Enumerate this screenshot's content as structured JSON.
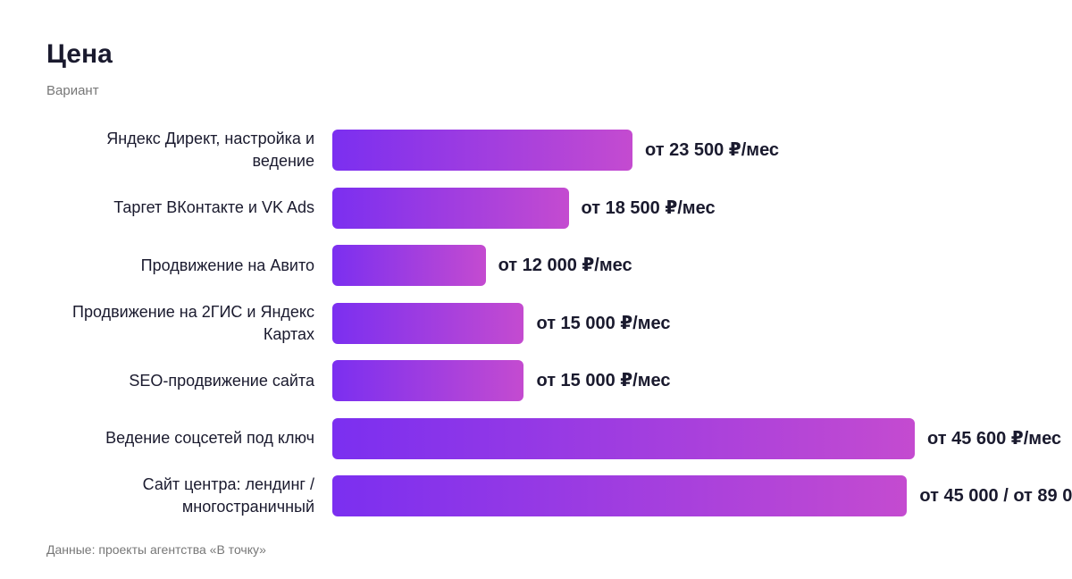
{
  "chart_data": {
    "type": "bar",
    "orientation": "horizontal",
    "title": "Цена",
    "subtitle": "Вариант",
    "categories": [
      "Яндекс Директ, настройка и ведение",
      "Таргет ВКонтакте и VK Ads",
      "Продвижение на Авито",
      "Продвижение на 2ГИС и Яндекс Картах",
      "SEO-продвижение сайта",
      "Ведение соцсетей под ключ",
      "Сайт центра: лендинг / многостраничный"
    ],
    "values": [
      23500,
      18500,
      12000,
      15000,
      15000,
      45600,
      45000
    ],
    "value_labels": [
      "от 23 500 ₽/мес",
      "от 18 500 ₽/мес",
      "от 12 000 ₽/мес",
      "от 15 000 ₽/мес",
      "от 15 000 ₽/мес",
      "от 45 600 ₽/мес",
      "от 45 000 / от 89 0"
    ],
    "colors": [
      "#7b2ff0",
      "#c44bd0"
    ],
    "source": "Данные: проекты агентства «В точку»"
  }
}
